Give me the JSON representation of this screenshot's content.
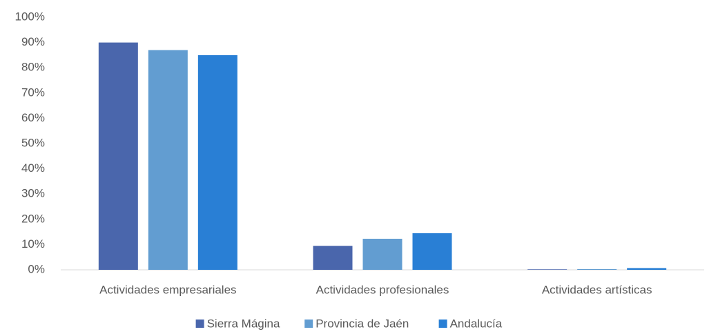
{
  "chart_data": {
    "type": "bar",
    "categories": [
      "Actividades empresariales",
      "Actividades profesionales",
      "Actividades artísticas"
    ],
    "series": [
      {
        "name": "Sierra Mágina",
        "color": "#4a66ac",
        "values": [
          90,
          9.5,
          0.2
        ]
      },
      {
        "name": "Provincia de Jaén",
        "color": "#629dd1",
        "values": [
          87,
          12.3,
          0.3
        ]
      },
      {
        "name": "Andalucía",
        "color": "#297fd5",
        "values": [
          85,
          14.5,
          0.7
        ]
      }
    ],
    "ylim": [
      0,
      100
    ],
    "yticks": [
      {
        "value": 0,
        "label": "0%"
      },
      {
        "value": 10,
        "label": "10%"
      },
      {
        "value": 20,
        "label": "20%"
      },
      {
        "value": 30,
        "label": "30%"
      },
      {
        "value": 40,
        "label": "40%"
      },
      {
        "value": 50,
        "label": "50%"
      },
      {
        "value": 60,
        "label": "60%"
      },
      {
        "value": 70,
        "label": "70%"
      },
      {
        "value": 80,
        "label": "80%"
      },
      {
        "value": 90,
        "label": "90%"
      },
      {
        "value": 100,
        "label": "100%"
      }
    ],
    "grid": false,
    "legend": "bottom"
  }
}
